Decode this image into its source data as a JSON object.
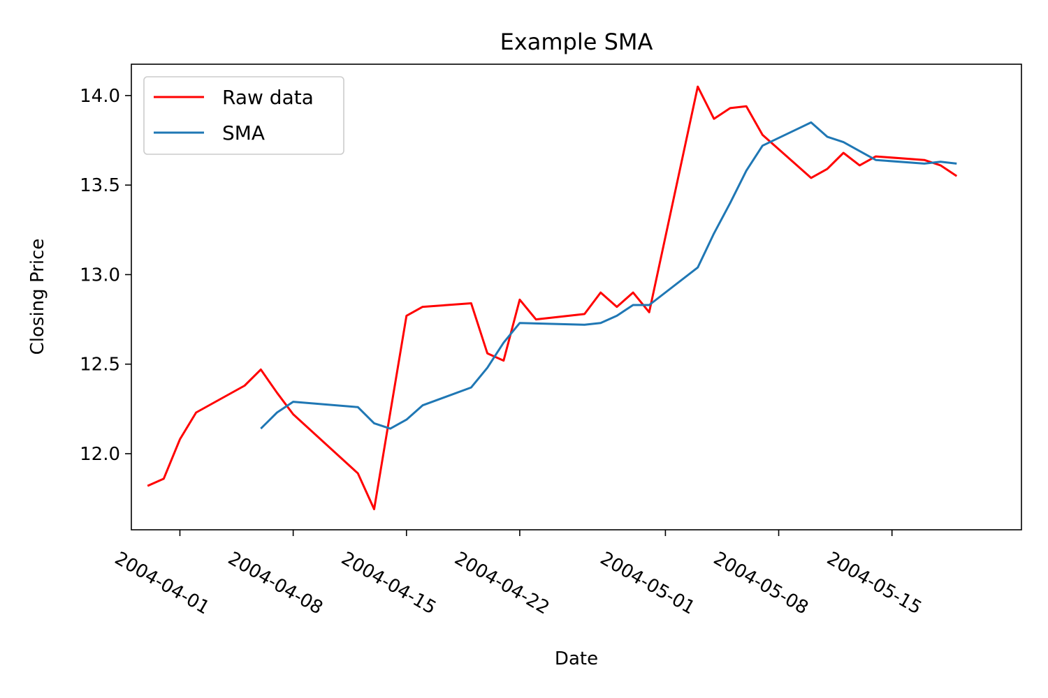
{
  "chart_data": {
    "type": "line",
    "title": "Example SMA",
    "xlabel": "Date",
    "ylabel": "Closing Price",
    "xlim": [
      "2004-03-29",
      "2004-05-23"
    ],
    "ylim": [
      11.575,
      14.175
    ],
    "x_ticks": [
      "2004-04-01",
      "2004-04-08",
      "2004-04-15",
      "2004-04-22",
      "2004-05-01",
      "2004-05-08",
      "2004-05-15"
    ],
    "y_ticks": [
      12.0,
      12.5,
      13.0,
      13.5,
      14.0
    ],
    "y_tick_labels": [
      "12.0",
      "12.5",
      "13.0",
      "13.5",
      "14.0"
    ],
    "grid": false,
    "legend_position": "upper-left",
    "series": [
      {
        "name": "Raw data",
        "color": "#ff0000",
        "x": [
          "2004-03-30",
          "2004-03-31",
          "2004-04-01",
          "2004-04-02",
          "2004-04-05",
          "2004-04-06",
          "2004-04-07",
          "2004-04-08",
          "2004-04-12",
          "2004-04-13",
          "2004-04-14",
          "2004-04-15",
          "2004-04-16",
          "2004-04-19",
          "2004-04-20",
          "2004-04-21",
          "2004-04-22",
          "2004-04-23",
          "2004-04-26",
          "2004-04-27",
          "2004-04-28",
          "2004-04-29",
          "2004-04-30",
          "2004-05-03",
          "2004-05-04",
          "2004-05-05",
          "2004-05-06",
          "2004-05-07",
          "2004-05-10",
          "2004-05-11",
          "2004-05-12",
          "2004-05-13",
          "2004-05-14",
          "2004-05-17",
          "2004-05-18",
          "2004-05-19"
        ],
        "y": [
          11.82,
          11.86,
          12.08,
          12.23,
          12.38,
          12.47,
          12.34,
          12.22,
          11.89,
          11.69,
          12.23,
          12.77,
          12.82,
          12.84,
          12.56,
          12.52,
          12.86,
          12.75,
          12.78,
          12.9,
          12.82,
          12.9,
          12.79,
          14.05,
          13.87,
          13.93,
          13.94,
          13.78,
          13.54,
          13.59,
          13.68,
          13.61,
          13.66,
          13.64,
          13.61,
          13.55
        ]
      },
      {
        "name": "SMA",
        "color": "#1f77b4",
        "x": [
          "2004-04-06",
          "2004-04-07",
          "2004-04-08",
          "2004-04-12",
          "2004-04-13",
          "2004-04-14",
          "2004-04-15",
          "2004-04-16",
          "2004-04-19",
          "2004-04-20",
          "2004-04-21",
          "2004-04-22",
          "2004-04-26",
          "2004-04-27",
          "2004-04-28",
          "2004-04-29",
          "2004-04-30",
          "2004-05-03",
          "2004-05-04",
          "2004-05-05",
          "2004-05-06",
          "2004-05-07",
          "2004-05-10",
          "2004-05-11",
          "2004-05-12",
          "2004-05-13",
          "2004-05-14",
          "2004-05-17",
          "2004-05-18",
          "2004-05-19"
        ],
        "y": [
          12.14,
          12.23,
          12.29,
          12.26,
          12.17,
          12.14,
          12.19,
          12.27,
          12.37,
          12.48,
          12.62,
          12.73,
          12.72,
          12.73,
          12.77,
          12.83,
          12.83,
          13.04,
          13.23,
          13.4,
          13.58,
          13.72,
          13.85,
          13.77,
          13.74,
          13.69,
          13.64,
          13.62,
          13.63,
          13.62
        ]
      }
    ]
  }
}
